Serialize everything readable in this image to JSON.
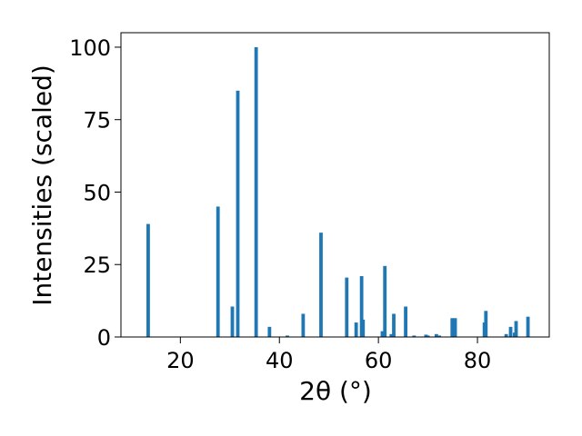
{
  "chart_data": {
    "type": "bar",
    "title": "",
    "xlabel": "2θ (°)",
    "ylabel": "Intensities (scaled)",
    "xlim": [
      8,
      94.5
    ],
    "ylim": [
      0,
      105
    ],
    "xticks": [
      20,
      40,
      60,
      80
    ],
    "yticks": [
      0,
      25,
      50,
      75,
      100
    ],
    "grid": false,
    "legend": "none",
    "color": "#1f77b4",
    "bar_width": 0.7,
    "points": [
      {
        "x": 13.5,
        "y": 39
      },
      {
        "x": 27.6,
        "y": 45
      },
      {
        "x": 30.5,
        "y": 10.5
      },
      {
        "x": 31.6,
        "y": 85
      },
      {
        "x": 35.3,
        "y": 100
      },
      {
        "x": 38.0,
        "y": 3.5
      },
      {
        "x": 41.6,
        "y": 0.5
      },
      {
        "x": 44.8,
        "y": 8
      },
      {
        "x": 48.4,
        "y": 36
      },
      {
        "x": 53.6,
        "y": 20.5
      },
      {
        "x": 55.5,
        "y": 5
      },
      {
        "x": 56.6,
        "y": 21
      },
      {
        "x": 56.9,
        "y": 6
      },
      {
        "x": 60.8,
        "y": 2
      },
      {
        "x": 61.3,
        "y": 24.5
      },
      {
        "x": 62.6,
        "y": 1
      },
      {
        "x": 63.1,
        "y": 8
      },
      {
        "x": 65.5,
        "y": 10.5
      },
      {
        "x": 67.2,
        "y": 0.5
      },
      {
        "x": 69.6,
        "y": 0.8
      },
      {
        "x": 70.0,
        "y": 0.5
      },
      {
        "x": 71.7,
        "y": 1
      },
      {
        "x": 72.3,
        "y": 0.5
      },
      {
        "x": 74.9,
        "y": 6.5
      },
      {
        "x": 75.5,
        "y": 6.5
      },
      {
        "x": 81.4,
        "y": 5
      },
      {
        "x": 81.7,
        "y": 9
      },
      {
        "x": 85.8,
        "y": 1
      },
      {
        "x": 86.7,
        "y": 3.5
      },
      {
        "x": 87.5,
        "y": 1.5
      },
      {
        "x": 87.8,
        "y": 5.5
      },
      {
        "x": 90.2,
        "y": 7
      }
    ]
  }
}
